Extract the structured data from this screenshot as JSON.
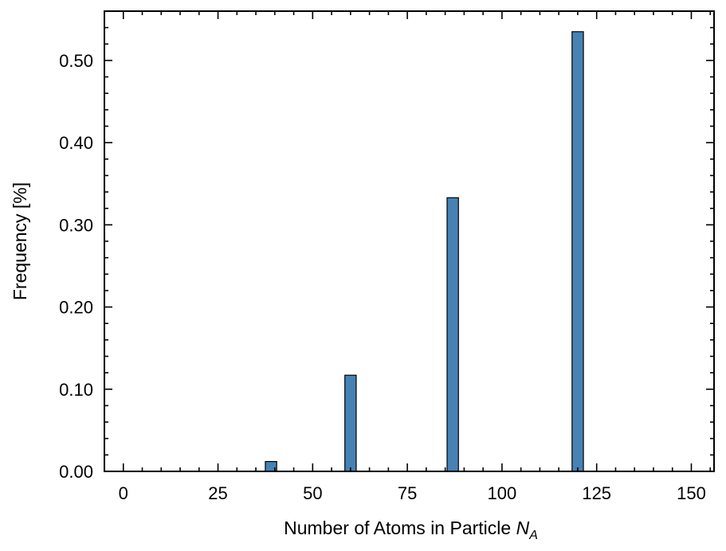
{
  "chart_data": {
    "type": "bar",
    "title": "",
    "xlabel": "Number of Atoms in Particle ",
    "xlabel_symbol": "N",
    "xlabel_subscript": "A",
    "ylabel": "Frequency [%]",
    "xlim": [
      -5,
      156
    ],
    "ylim": [
      0,
      0.56
    ],
    "xticks": [
      0,
      25,
      50,
      75,
      100,
      125,
      150
    ],
    "xtick_labels": [
      "0",
      "25",
      "50",
      "75",
      "100",
      "125",
      "150"
    ],
    "yticks": [
      0.0,
      0.1,
      0.2,
      0.3,
      0.4,
      0.5
    ],
    "ytick_labels": [
      "0.00",
      "0.10",
      "0.20",
      "0.30",
      "0.40",
      "0.50"
    ],
    "bin_width": 3,
    "x": [
      39,
      60,
      87,
      120
    ],
    "values": [
      0.012,
      0.117,
      0.333,
      0.535
    ],
    "color": "#4682b4",
    "edge_color": "#000000",
    "grid": false,
    "legend": false
  }
}
